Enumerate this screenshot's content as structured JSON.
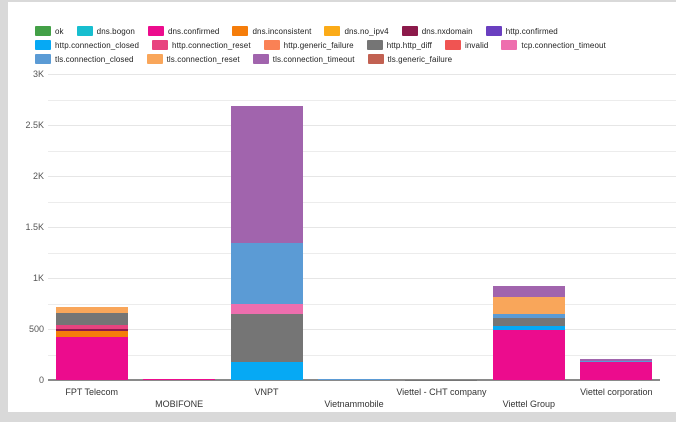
{
  "chart_data": {
    "type": "bar",
    "stacked": true,
    "title": "",
    "xlabel": "",
    "ylabel": "",
    "ylim": [
      0,
      3000
    ],
    "grid_interval": 250,
    "legend_position": "top-left",
    "legend_row_breaks": [
      7,
      13
    ],
    "categories": [
      "FPT Telecom",
      "MOBIFONE",
      "VNPT",
      "Vietnammobile",
      "Viettel - CHT company",
      "Viettel Group",
      "Viettel corporation"
    ],
    "y_ticks": [
      {
        "value": 0,
        "label": "0"
      },
      {
        "value": 500,
        "label": "500"
      },
      {
        "value": 1000,
        "label": "1K"
      },
      {
        "value": 1500,
        "label": "1.5K"
      },
      {
        "value": 2000,
        "label": "2K"
      },
      {
        "value": 2500,
        "label": "2.5K"
      },
      {
        "value": 3000,
        "label": "3K"
      }
    ],
    "series": [
      {
        "name": "ok",
        "color": "#43a047",
        "values": [
          0,
          0,
          0,
          0,
          0,
          0,
          0
        ]
      },
      {
        "name": "dns.bogon",
        "color": "#17becf",
        "values": [
          0,
          0,
          0,
          0,
          0,
          0,
          0
        ]
      },
      {
        "name": "dns.confirmed",
        "color": "#ec0c8d",
        "values": [
          420,
          6,
          0,
          0,
          0,
          490,
          175
        ]
      },
      {
        "name": "dns.inconsistent",
        "color": "#f57d0a",
        "values": [
          60,
          0,
          0,
          0,
          0,
          0,
          0
        ]
      },
      {
        "name": "dns.no_ipv4",
        "color": "#fbab18",
        "values": [
          0,
          0,
          0,
          0,
          0,
          0,
          0
        ]
      },
      {
        "name": "dns.nxdomain",
        "color": "#8c1a4b",
        "values": [
          20,
          6,
          0,
          0,
          0,
          0,
          0
        ]
      },
      {
        "name": "http.confirmed",
        "color": "#6a3fc0",
        "values": [
          0,
          0,
          0,
          0,
          0,
          0,
          0
        ]
      },
      {
        "name": "http.connection_closed",
        "color": "#06a9f4",
        "values": [
          0,
          0,
          175,
          0,
          0,
          40,
          0
        ]
      },
      {
        "name": "http.connection_reset",
        "color": "#e8437f",
        "values": [
          40,
          0,
          0,
          0,
          0,
          0,
          0
        ]
      },
      {
        "name": "http.generic_failure",
        "color": "#fa8155",
        "values": [
          0,
          0,
          0,
          0,
          0,
          0,
          0
        ]
      },
      {
        "name": "http.http_diff",
        "color": "#757575",
        "values": [
          115,
          0,
          470,
          0,
          5,
          80,
          0
        ]
      },
      {
        "name": "invalid",
        "color": "#f05452",
        "values": [
          0,
          0,
          0,
          0,
          0,
          0,
          0
        ]
      },
      {
        "name": "tcp.connection_timeout",
        "color": "#ee6eae",
        "values": [
          0,
          0,
          100,
          0,
          0,
          0,
          0
        ]
      },
      {
        "name": "tls.connection_closed",
        "color": "#5b9bd5",
        "values": [
          0,
          0,
          600,
          10,
          0,
          40,
          10
        ]
      },
      {
        "name": "tls.connection_reset",
        "color": "#f9a65a",
        "values": [
          60,
          0,
          0,
          0,
          0,
          165,
          0
        ]
      },
      {
        "name": "tls.connection_timeout",
        "color": "#a164ad",
        "values": [
          0,
          0,
          1345,
          0,
          0,
          105,
          20
        ]
      },
      {
        "name": "tls.generic_failure",
        "color": "#c26152",
        "values": [
          0,
          0,
          0,
          0,
          0,
          0,
          0
        ]
      }
    ]
  }
}
